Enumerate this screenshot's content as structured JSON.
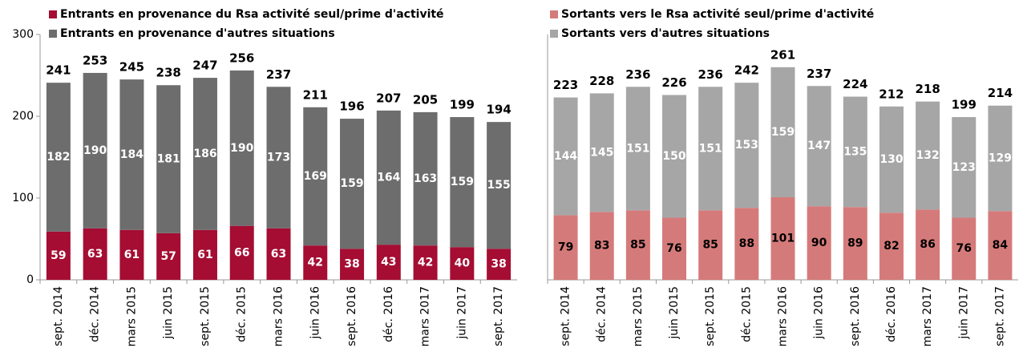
{
  "chart_data": [
    {
      "type": "bar",
      "stacked": true,
      "categories": [
        "sept. 2014",
        "déc. 2014",
        "mars 2015",
        "juin 2015",
        "sept. 2015",
        "déc. 2015",
        "mars 2016",
        "juin 2016",
        "sept. 2016",
        "déc. 2016",
        "mars 2017",
        "juin 2017",
        "sept. 2017"
      ],
      "series": [
        {
          "name": "Entrants en provenance du Rsa activité seul/prime d'activité",
          "color": "#a50d33",
          "label_color": "#ffffff",
          "values": [
            59,
            63,
            61,
            57,
            61,
            66,
            63,
            42,
            38,
            43,
            42,
            40,
            38
          ]
        },
        {
          "name": "Entrants en provenance d'autres situations",
          "color": "#6d6d6e",
          "label_color": "#ffffff",
          "values": [
            182,
            190,
            184,
            181,
            186,
            190,
            173,
            169,
            159,
            164,
            163,
            159,
            155
          ]
        }
      ],
      "totals": [
        241,
        253,
        245,
        238,
        247,
        256,
        237,
        211,
        196,
        207,
        205,
        199,
        194
      ],
      "ylim": [
        0,
        300
      ],
      "yticks": [
        0,
        100,
        200,
        300
      ]
    },
    {
      "type": "bar",
      "stacked": true,
      "categories": [
        "sept. 2014",
        "déc. 2014",
        "mars 2015",
        "juin 2015",
        "sept. 2015",
        "déc. 2015",
        "mars 2016",
        "juin 2016",
        "sept. 2016",
        "déc. 2016",
        "mars 2017",
        "juin 2017",
        "sept. 2017"
      ],
      "series": [
        {
          "name": "Sortants vers le Rsa activité seul/prime d'activité",
          "color": "#d57a7a",
          "label_color": "#000000",
          "values": [
            79,
            83,
            85,
            76,
            85,
            88,
            101,
            90,
            89,
            82,
            86,
            76,
            84
          ]
        },
        {
          "name": "Sortants vers d'autres situations",
          "color": "#a6a6a7",
          "label_color": "#ffffff",
          "values": [
            144,
            145,
            151,
            150,
            151,
            153,
            159,
            147,
            135,
            130,
            132,
            123,
            129
          ]
        }
      ],
      "totals": [
        223,
        228,
        236,
        226,
        236,
        242,
        261,
        237,
        224,
        212,
        218,
        199,
        214
      ],
      "ylim": [
        0,
        300
      ]
    }
  ]
}
